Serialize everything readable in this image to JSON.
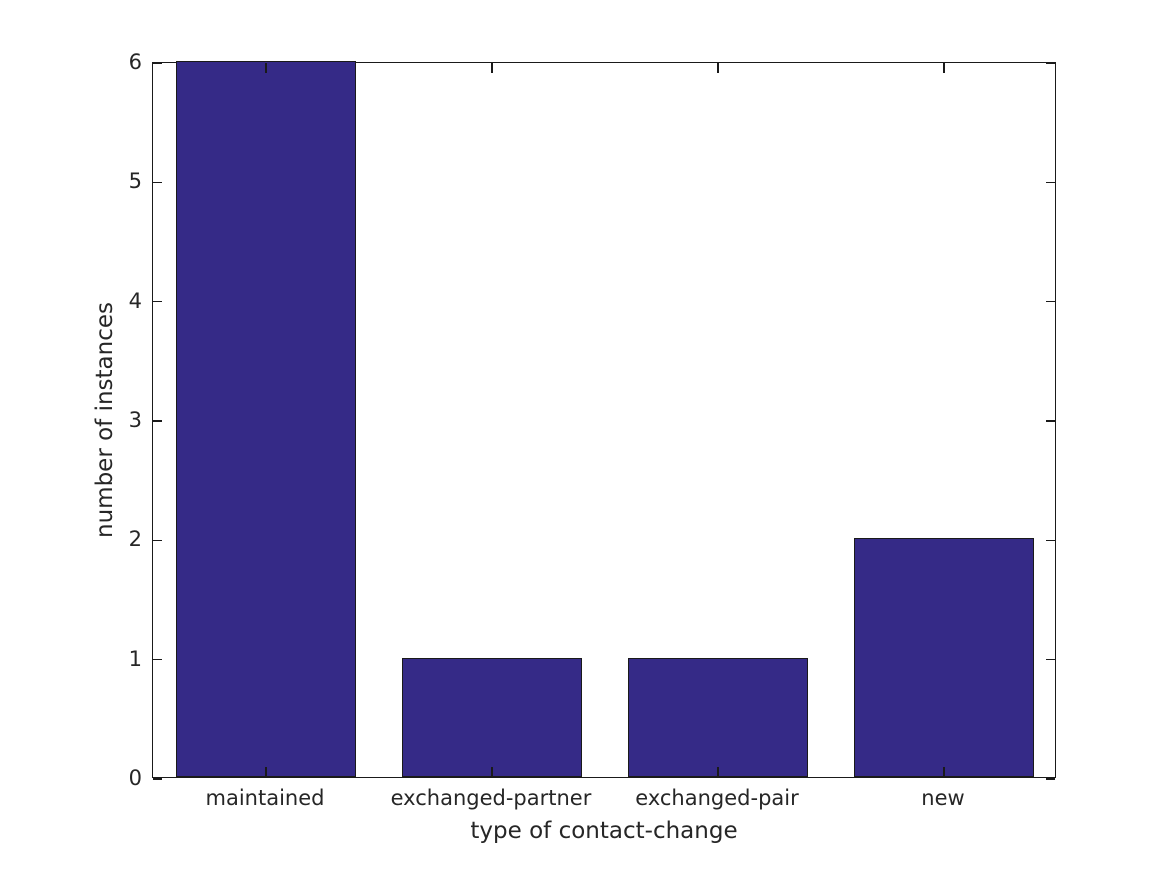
{
  "figure": {
    "background_color": "#ffffff",
    "axis_color": "#1a1a1a",
    "text_color": "#262626"
  },
  "chart_data": {
    "type": "bar",
    "title": "",
    "categories": [
      "maintained",
      "exchanged-partner",
      "exchanged-pair",
      "new"
    ],
    "values": [
      6,
      1,
      1,
      2
    ],
    "xlabel": "type of contact-change",
    "ylabel": "number of instances",
    "ylim": [
      0,
      6
    ],
    "yticks": [
      0,
      1,
      2,
      3,
      4,
      5,
      6
    ],
    "grid": false,
    "legend": "none",
    "bar_color": "#352a87",
    "bar_edge_color": "#1a1a1a",
    "bar_width_fraction": 0.8,
    "tick_direction": "in",
    "box": true
  }
}
